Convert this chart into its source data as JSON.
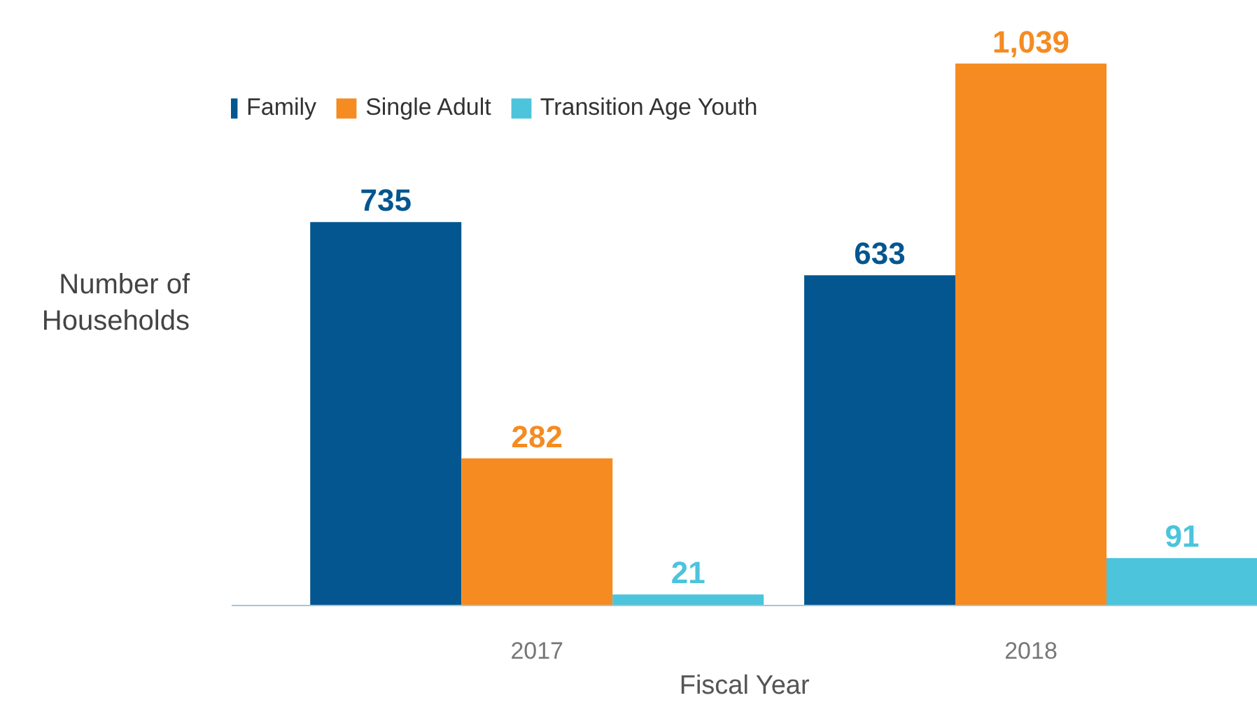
{
  "chart_data": {
    "type": "bar",
    "xlabel": "Fiscal Year",
    "ylabel": "Number of Households",
    "categories": [
      "2017",
      "2018"
    ],
    "series": [
      {
        "name": "Family",
        "color": "#03568f",
        "values": [
          735,
          633
        ],
        "value_labels": [
          "735",
          "633"
        ]
      },
      {
        "name": "Single Adult",
        "color": "#f58b21",
        "values": [
          282,
          1039
        ],
        "value_labels": [
          "282",
          "1,039"
        ]
      },
      {
        "name": "Transition Age Youth",
        "color": "#4bc4dc",
        "values": [
          21,
          91
        ],
        "value_labels": [
          "21",
          "91"
        ]
      }
    ],
    "legend": "top left",
    "grid": false
  }
}
